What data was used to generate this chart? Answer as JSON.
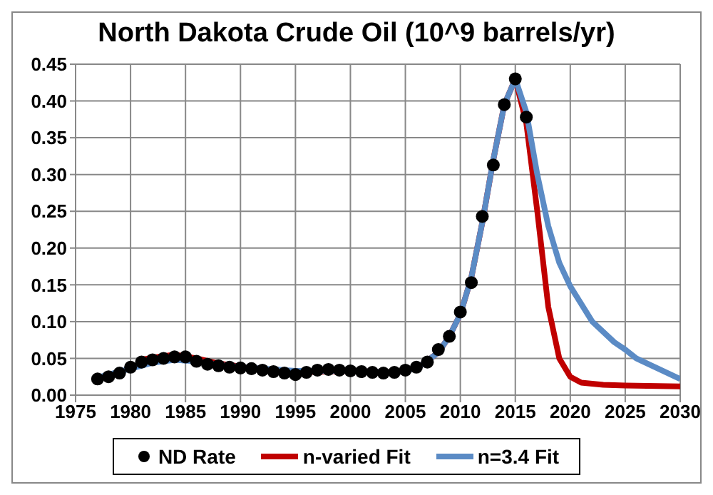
{
  "chart_data": {
    "type": "line",
    "title": "North Dakota Crude Oil (10^9 barrels/yr)",
    "xlim": [
      1975,
      2030
    ],
    "xticks": [
      1975,
      1980,
      1985,
      1990,
      1995,
      2000,
      2005,
      2010,
      2015,
      2020,
      2025,
      2030
    ],
    "ylim": [
      0,
      0.45
    ],
    "yticks": [
      {
        "value": 0,
        "label": "0.00"
      },
      {
        "value": 0.05,
        "label": "0.05"
      },
      {
        "value": 0.1,
        "label": "0.10"
      },
      {
        "value": 0.15,
        "label": "0.15"
      },
      {
        "value": 0.2,
        "label": "0.20"
      },
      {
        "value": 0.25,
        "label": "0.25"
      },
      {
        "value": 0.3,
        "label": "0.30"
      },
      {
        "value": 0.35,
        "label": "0.35"
      },
      {
        "value": 0.4,
        "label": "0.40"
      },
      {
        "value": 0.45,
        "label": "0.45"
      }
    ],
    "grid": true,
    "legend": "bottom",
    "series": [
      {
        "name": "ND Rate",
        "type": "scatter",
        "color": "#000000",
        "marker": "circle",
        "x": [
          1977,
          1978,
          1979,
          1980,
          1981,
          1982,
          1983,
          1984,
          1985,
          1986,
          1987,
          1988,
          1989,
          1990,
          1991,
          1992,
          1993,
          1994,
          1995,
          1996,
          1997,
          1998,
          1999,
          2000,
          2001,
          2002,
          2003,
          2004,
          2005,
          2006,
          2007,
          2008,
          2009,
          2010,
          2011,
          2012,
          2013,
          2014,
          2015,
          2016
        ],
        "values": [
          0.022,
          0.025,
          0.03,
          0.038,
          0.045,
          0.048,
          0.05,
          0.052,
          0.052,
          0.046,
          0.042,
          0.04,
          0.038,
          0.037,
          0.036,
          0.034,
          0.032,
          0.03,
          0.028,
          0.031,
          0.034,
          0.035,
          0.034,
          0.033,
          0.032,
          0.031,
          0.03,
          0.031,
          0.034,
          0.038,
          0.045,
          0.062,
          0.08,
          0.113,
          0.153,
          0.243,
          0.313,
          0.395,
          0.43,
          0.378
        ]
      },
      {
        "name": "n-varied Fit",
        "color": "#c00000",
        "marker": "none",
        "x": [
          1981,
          1982,
          1984,
          1986,
          1988,
          1991,
          1995,
          2000,
          2004,
          2006,
          2008,
          2009,
          2010,
          2011,
          2012,
          2013,
          2014,
          2015,
          2016,
          2017,
          2018,
          2019,
          2020,
          2021,
          2023,
          2025,
          2030
        ],
        "values": [
          0.048,
          0.051,
          0.055,
          0.05,
          0.043,
          0.037,
          0.031,
          0.033,
          0.031,
          0.036,
          0.058,
          0.08,
          0.11,
          0.16,
          0.235,
          0.32,
          0.395,
          0.43,
          0.37,
          0.25,
          0.12,
          0.05,
          0.025,
          0.017,
          0.014,
          0.013,
          0.012
        ]
      },
      {
        "name": "n=3.4 Fit",
        "color": "#5b8bc5",
        "marker": "none",
        "x": [
          1977,
          1980,
          1982,
          1984,
          1986,
          1988,
          1991,
          1995,
          2000,
          2004,
          2006,
          2008,
          2009,
          2010,
          2011,
          2012,
          2013,
          2014,
          2015,
          2016,
          2017,
          2018,
          2019,
          2020,
          2022,
          2024,
          2025,
          2026,
          2028,
          2030
        ],
        "values": [
          0.024,
          0.036,
          0.044,
          0.048,
          0.046,
          0.041,
          0.037,
          0.033,
          0.033,
          0.031,
          0.036,
          0.058,
          0.08,
          0.11,
          0.16,
          0.235,
          0.32,
          0.395,
          0.43,
          0.385,
          0.3,
          0.23,
          0.18,
          0.148,
          0.1,
          0.072,
          0.062,
          0.05,
          0.036,
          0.022
        ]
      }
    ]
  }
}
